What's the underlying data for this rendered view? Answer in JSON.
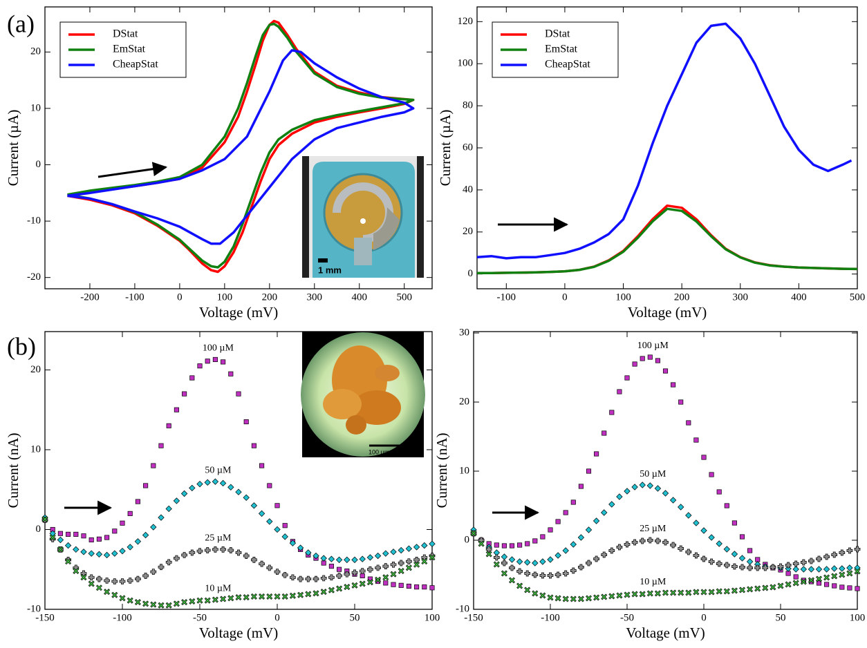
{
  "chart_data": [
    {
      "type": "line",
      "panel_label": "(a)",
      "xlabel": "Voltage (mV)",
      "ylabel": "Current (µA)",
      "xlim": [
        -300,
        562
      ],
      "ylim": [
        -22,
        28
      ],
      "xticks": [
        -200,
        -100,
        0,
        100,
        200,
        300,
        400,
        500
      ],
      "yticks": [
        -20,
        -10,
        0,
        10,
        20
      ],
      "legend": "upper left",
      "inset_label": "1 mm",
      "series": [
        {
          "name": "DStat",
          "color": "#ff0000",
          "x": [
            -250,
            -200,
            -150,
            -100,
            -50,
            0,
            50,
            100,
            130,
            150,
            170,
            185,
            200,
            210,
            220,
            240,
            260,
            300,
            350,
            400,
            450,
            520,
            500,
            450,
            400,
            350,
            300,
            250,
            220,
            200,
            180,
            160,
            140,
            120,
            100,
            85,
            70,
            50,
            20,
            0,
            -50,
            -100,
            -150,
            -200,
            -250
          ],
          "values": [
            -5.5,
            -4.8,
            -4.3,
            -3.8,
            -3.2,
            -2.5,
            -0.5,
            4,
            8.5,
            13,
            18,
            22,
            24.8,
            25.5,
            25.2,
            23,
            20.5,
            16.5,
            14,
            12.8,
            12,
            11.5,
            10.8,
            10,
            9.3,
            8.5,
            7.5,
            5.5,
            3.5,
            1,
            -3,
            -7.5,
            -12,
            -15.5,
            -18,
            -19,
            -18.7,
            -17.5,
            -15,
            -13.5,
            -10.8,
            -8.6,
            -7.2,
            -6.2,
            -5.5
          ]
        },
        {
          "name": "EmStat",
          "color": "#108010",
          "x": [
            -250,
            -200,
            -150,
            -100,
            -50,
            0,
            50,
            100,
            130,
            150,
            170,
            185,
            200,
            210,
            220,
            240,
            260,
            300,
            350,
            400,
            450,
            520,
            500,
            450,
            400,
            350,
            300,
            250,
            220,
            200,
            180,
            160,
            140,
            120,
            100,
            85,
            70,
            50,
            20,
            0,
            -50,
            -100,
            -150,
            -200,
            -250
          ],
          "values": [
            -5.3,
            -4.6,
            -4.1,
            -3.6,
            -3,
            -2.2,
            0,
            5,
            10,
            14.5,
            19.5,
            23,
            24.8,
            25,
            24.5,
            22.5,
            20,
            16.2,
            13.8,
            12.6,
            11.9,
            11.5,
            10.9,
            10.2,
            9.5,
            8.8,
            7.9,
            6.2,
            4.5,
            2.2,
            -1.5,
            -6,
            -10.5,
            -14.5,
            -17.2,
            -18.2,
            -18,
            -17,
            -14.8,
            -13.3,
            -10.6,
            -8.4,
            -7,
            -6,
            -5.3
          ]
        },
        {
          "name": "CheapStat",
          "color": "#1010ff",
          "x": [
            -250,
            -200,
            -150,
            -100,
            -50,
            0,
            50,
            100,
            150,
            200,
            230,
            250,
            270,
            300,
            350,
            400,
            450,
            500,
            520,
            500,
            450,
            400,
            350,
            300,
            250,
            200,
            150,
            120,
            90,
            70,
            50,
            0,
            -50,
            -100,
            -150,
            -200,
            -250
          ],
          "values": [
            -5.5,
            -5,
            -4.4,
            -3.8,
            -3.2,
            -2.5,
            -1,
            1,
            5,
            13,
            18.5,
            20.3,
            20,
            18,
            15.5,
            13.5,
            12,
            11,
            10,
            9.3,
            8.5,
            7.5,
            6.5,
            4.5,
            1,
            -4,
            -9,
            -12,
            -14,
            -14,
            -13.2,
            -11,
            -9.5,
            -8.3,
            -7,
            -6,
            -5.5
          ]
        }
      ]
    },
    {
      "type": "line",
      "xlabel": "Voltage (mV)",
      "ylabel": "Current (µA)",
      "xlim": [
        -150,
        500
      ],
      "ylim": [
        -7,
        127
      ],
      "xticks": [
        -100,
        0,
        100,
        200,
        300,
        400,
        500
      ],
      "yticks": [
        0,
        20,
        40,
        60,
        80,
        100,
        120
      ],
      "legend": "upper left",
      "series": [
        {
          "name": "DStat",
          "color": "#ff0000",
          "x": [
            -150,
            -125,
            -100,
            -75,
            -50,
            -25,
            0,
            25,
            50,
            75,
            100,
            125,
            150,
            175,
            200,
            225,
            250,
            275,
            300,
            325,
            350,
            375,
            400,
            425,
            450,
            475,
            500
          ],
          "values": [
            0.5,
            0.5,
            0.6,
            0.7,
            0.8,
            1,
            1.3,
            2,
            3.5,
            6.5,
            11,
            18,
            26,
            32.5,
            31.5,
            26,
            18.5,
            12,
            8,
            5.5,
            4.2,
            3.5,
            3.1,
            2.9,
            2.7,
            2.5,
            2.4
          ]
        },
        {
          "name": "EmStat",
          "color": "#108010",
          "x": [
            -150,
            -125,
            -100,
            -75,
            -50,
            -25,
            0,
            25,
            50,
            75,
            100,
            125,
            150,
            175,
            200,
            225,
            250,
            275,
            300,
            325,
            350,
            375,
            400,
            425,
            450,
            475,
            500
          ],
          "values": [
            0.5,
            0.5,
            0.6,
            0.7,
            0.8,
            1,
            1.3,
            2,
            3.4,
            6.3,
            10.6,
            17.3,
            25,
            31,
            30,
            25,
            18,
            11.8,
            7.9,
            5.4,
            4.1,
            3.5,
            3.1,
            2.9,
            2.7,
            2.5,
            2.4
          ]
        },
        {
          "name": "CheapStat",
          "color": "#1010ff",
          "x": [
            -150,
            -125,
            -100,
            -75,
            -50,
            -25,
            0,
            25,
            50,
            75,
            100,
            125,
            150,
            175,
            200,
            225,
            250,
            275,
            300,
            325,
            350,
            375,
            400,
            425,
            450,
            475,
            490
          ],
          "values": [
            8,
            8.5,
            7.5,
            8,
            8,
            9,
            10,
            12,
            15,
            19,
            26,
            42,
            62,
            80,
            95,
            110,
            118,
            119,
            112,
            100,
            85,
            70,
            59,
            52,
            49,
            52,
            54
          ]
        }
      ]
    },
    {
      "type": "scatter",
      "panel_label": "(b)",
      "xlabel": "Voltage (mV)",
      "ylabel": "Current (nA)",
      "xlim": [
        -150,
        100
      ],
      "ylim": [
        -10,
        24.8
      ],
      "xticks": [
        -150,
        -100,
        -50,
        0,
        50,
        100
      ],
      "yticks": [
        -10,
        0,
        10,
        20
      ],
      "inset_label": "100 µm",
      "x": [
        -150,
        -145,
        -140,
        -135,
        -130,
        -125,
        -120,
        -115,
        -110,
        -105,
        -100,
        -95,
        -90,
        -85,
        -80,
        -75,
        -70,
        -65,
        -60,
        -55,
        -50,
        -45,
        -40,
        -35,
        -30,
        -25,
        -20,
        -15,
        -10,
        -5,
        0,
        5,
        10,
        15,
        20,
        25,
        30,
        35,
        40,
        45,
        50,
        55,
        60,
        65,
        70,
        75,
        80,
        85,
        90,
        95,
        100
      ],
      "series": [
        {
          "name": "100 µM",
          "color": "#c030c0",
          "marker": "square",
          "values": [
            1.2,
            0,
            -0.5,
            -0.6,
            -0.6,
            -0.8,
            -1.3,
            -1.2,
            -1,
            -0.2,
            0.8,
            2,
            3.5,
            5.5,
            8,
            10.5,
            13,
            15,
            17,
            19,
            20.5,
            21.1,
            21.3,
            21,
            19.5,
            17,
            13.5,
            10.5,
            8,
            5.5,
            3,
            0.5,
            -1.5,
            -2.5,
            -3.2,
            -3.6,
            -4.2,
            -4.6,
            -5,
            -5.2,
            -5.6,
            -5.8,
            -6.2,
            -6.5,
            -6.7,
            -6.9,
            -7,
            -7.1,
            -7.2,
            -7.2,
            -7.3
          ]
        },
        {
          "name": "50 µM",
          "color": "#20c0d0",
          "marker": "diamond",
          "values": [
            1.5,
            -0.5,
            -1.3,
            -2,
            -2.5,
            -2.8,
            -3,
            -3.1,
            -3.2,
            -3,
            -2.7,
            -2.2,
            -1.5,
            -0.7,
            0.3,
            1.5,
            2.6,
            3.6,
            4.5,
            5.2,
            5.7,
            5.9,
            6,
            5.8,
            5.3,
            4.7,
            4,
            3,
            2,
            1,
            0,
            -0.9,
            -1.7,
            -2.3,
            -2.9,
            -3.3,
            -3.6,
            -3.7,
            -3.8,
            -3.8,
            -3.8,
            -3.7,
            -3.5,
            -3.3,
            -3,
            -2.8,
            -2.6,
            -2.4,
            -2.2,
            -2,
            -1.8
          ]
        },
        {
          "name": "25 µM",
          "color": "#909090",
          "marker": "plus",
          "values": [
            1.2,
            -1.2,
            -2.5,
            -3.8,
            -4.8,
            -5.5,
            -6,
            -6.2,
            -6.4,
            -6.5,
            -6.5,
            -6.4,
            -6.2,
            -5.8,
            -5.3,
            -4.7,
            -4.1,
            -3.6,
            -3.2,
            -2.9,
            -2.7,
            -2.6,
            -2.5,
            -2.5,
            -2.6,
            -2.9,
            -3.3,
            -3.8,
            -4.3,
            -4.8,
            -5.3,
            -5.7,
            -6,
            -6.2,
            -6.2,
            -6.2,
            -6.1,
            -6,
            -5.8,
            -5.6,
            -5.4,
            -5.2,
            -5,
            -4.8,
            -4.6,
            -4.4,
            -4.2,
            -4,
            -3.8,
            -3.5,
            -3.3
          ]
        },
        {
          "name": "10 µM",
          "color": "#40c040",
          "marker": "x",
          "values": [
            1.3,
            -1,
            -2.5,
            -4,
            -5.2,
            -6,
            -6.8,
            -7.3,
            -7.8,
            -8.2,
            -8.6,
            -8.9,
            -9.1,
            -9.3,
            -9.4,
            -9.5,
            -9.5,
            -9.3,
            -9.1,
            -9,
            -8.9,
            -8.9,
            -8.8,
            -8.7,
            -8.6,
            -8.5,
            -8.5,
            -8.4,
            -8.4,
            -8.4,
            -8.4,
            -8.4,
            -8.3,
            -8.2,
            -8.1,
            -8,
            -7.8,
            -7.6,
            -7.4,
            -7.2,
            -7,
            -6.8,
            -6.6,
            -6.3,
            -6,
            -5.6,
            -5.2,
            -4.8,
            -4.4,
            -4,
            -3.5
          ]
        }
      ]
    },
    {
      "type": "scatter",
      "xlabel": "Voltage (mV)",
      "ylabel": "Current (nA)",
      "xlim": [
        -150,
        100
      ],
      "ylim": [
        -10,
        30.2
      ],
      "xticks": [
        -150,
        -100,
        -50,
        0,
        50,
        100
      ],
      "yticks": [
        -10,
        0,
        10,
        20,
        30
      ],
      "x": [
        -150,
        -145,
        -140,
        -135,
        -130,
        -125,
        -120,
        -115,
        -110,
        -105,
        -100,
        -95,
        -90,
        -85,
        -80,
        -75,
        -70,
        -65,
        -60,
        -55,
        -50,
        -45,
        -40,
        -35,
        -30,
        -25,
        -20,
        -15,
        -10,
        -5,
        0,
        5,
        10,
        15,
        20,
        25,
        30,
        35,
        40,
        45,
        50,
        55,
        60,
        65,
        70,
        75,
        80,
        85,
        90,
        95,
        100
      ],
      "series": [
        {
          "name": "100 µM",
          "color": "#c030c0",
          "marker": "square",
          "values": [
            1,
            0,
            -0.5,
            -0.7,
            -0.8,
            -0.8,
            -0.7,
            -0.5,
            -0.1,
            0.5,
            1.5,
            2.7,
            4,
            5.5,
            7.8,
            10,
            12.5,
            15.5,
            18.5,
            21.5,
            23.5,
            25.5,
            26.3,
            26.5,
            26,
            24.5,
            22.5,
            20,
            17,
            14.5,
            12,
            9.5,
            7,
            5,
            2.5,
            0.5,
            -1.5,
            -2.8,
            -3.5,
            -4,
            -4.3,
            -4.8,
            -5.3,
            -5.8,
            -6,
            -6.2,
            -6.4,
            -6.6,
            -6.8,
            -6.9,
            -7
          ]
        },
        {
          "name": "50 µM",
          "color": "#20c0d0",
          "marker": "diamond",
          "values": [
            1.5,
            0,
            -1,
            -1.8,
            -2.4,
            -2.8,
            -3.1,
            -3.2,
            -3.3,
            -3.1,
            -2.8,
            -2.2,
            -1.5,
            -0.6,
            0.4,
            1.5,
            2.8,
            4,
            5.2,
            6.3,
            7.1,
            7.7,
            8,
            7.9,
            7.5,
            6.8,
            5.8,
            4.8,
            3.6,
            2.5,
            1.4,
            0.4,
            -0.5,
            -1.3,
            -2,
            -2.6,
            -3.1,
            -3.5,
            -3.8,
            -3.9,
            -4,
            -4.1,
            -4.2,
            -4.2,
            -4.2,
            -4.2,
            -4.2,
            -4.1,
            -4.1,
            -4,
            -4
          ]
        },
        {
          "name": "25 µM",
          "color": "#909090",
          "marker": "plus",
          "values": [
            1,
            0,
            -1.3,
            -2.5,
            -3.3,
            -4,
            -4.5,
            -4.8,
            -5,
            -5.1,
            -5.1,
            -5,
            -4.8,
            -4.4,
            -3.9,
            -3.3,
            -2.7,
            -2.1,
            -1.5,
            -1,
            -0.6,
            -0.3,
            -0.1,
            0,
            -0.1,
            -0.3,
            -0.7,
            -1.2,
            -1.7,
            -2.2,
            -2.7,
            -3.1,
            -3.4,
            -3.6,
            -3.8,
            -3.9,
            -4,
            -4,
            -4,
            -3.9,
            -3.8,
            -3.6,
            -3.4,
            -3.2,
            -3,
            -2.7,
            -2.4,
            -2.1,
            -1.8,
            -1.5,
            -1.3
          ]
        },
        {
          "name": "10 µM",
          "color": "#40c040",
          "marker": "x",
          "values": [
            1,
            -0.5,
            -2,
            -3.5,
            -4.8,
            -5.8,
            -6.6,
            -7.2,
            -7.7,
            -8,
            -8.3,
            -8.4,
            -8.5,
            -8.5,
            -8.5,
            -8.4,
            -8.3,
            -8.2,
            -8.1,
            -8,
            -7.9,
            -7.8,
            -7.8,
            -7.7,
            -7.7,
            -7.6,
            -7.6,
            -7.6,
            -7.6,
            -7.5,
            -7.5,
            -7.5,
            -7.4,
            -7.4,
            -7.3,
            -7.2,
            -7.1,
            -7,
            -6.9,
            -6.8,
            -6.6,
            -6.4,
            -6.2,
            -6,
            -5.8,
            -5.6,
            -5.4,
            -5.2,
            -5,
            -4.8,
            -4.5
          ]
        }
      ]
    }
  ]
}
